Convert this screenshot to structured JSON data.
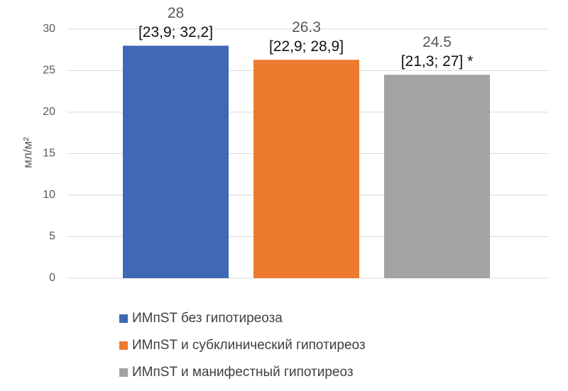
{
  "chart_data": {
    "type": "bar",
    "y_label": "мл/м²",
    "series": [
      {
        "name": "ИМпST без гипотиреоза",
        "color": "#3f68b5",
        "values": [
          28
        ],
        "annotation": "[23,9; 32,2]"
      },
      {
        "name": "ИМпST и субклинический гипотиреоз",
        "color": "#ed7a2e",
        "values": [
          26.3
        ],
        "annotation": "[22,9; 28,9]"
      },
      {
        "name": "ИМпST и манифестный гипотиреоз",
        "color": "#a3a3a3",
        "values": [
          24.5
        ],
        "annotation": "[21,3; 27] *"
      }
    ],
    "ylim": [
      0,
      30
    ],
    "yticks": [
      0,
      5,
      10,
      15,
      20,
      25,
      30
    ],
    "grid": true,
    "legend": "bottom"
  }
}
